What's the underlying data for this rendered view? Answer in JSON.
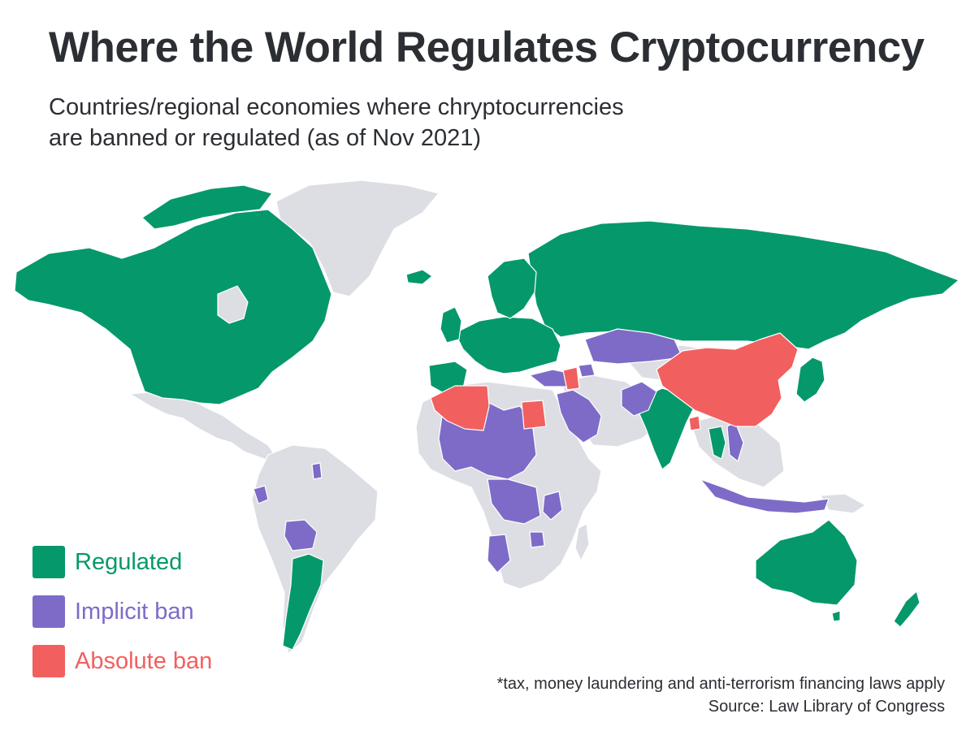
{
  "header": {
    "title": "Where the World Regulates Cryptocurrency",
    "subtitle_line1": "Countries/regional economies where chryptocurrencies",
    "subtitle_line2": "are banned or regulated (as of Nov 2021)"
  },
  "legend": [
    {
      "key": "regulated",
      "label": "Regulated",
      "color": "#05986b"
    },
    {
      "key": "implicit",
      "label": "Implicit ban",
      "color": "#7e6bc8"
    },
    {
      "key": "absolute",
      "label": "Absolute ban",
      "color": "#f25f5f"
    }
  ],
  "colors": {
    "regulated": "#05986b",
    "implicit_ban": "#7e6bc8",
    "absolute_ban": "#f25f5f",
    "no_data": "#dcdee3"
  },
  "footnote": {
    "note": "*tax, money laundering and anti-terrorism financing laws apply",
    "source": "Source: Law Library of Congress"
  }
}
